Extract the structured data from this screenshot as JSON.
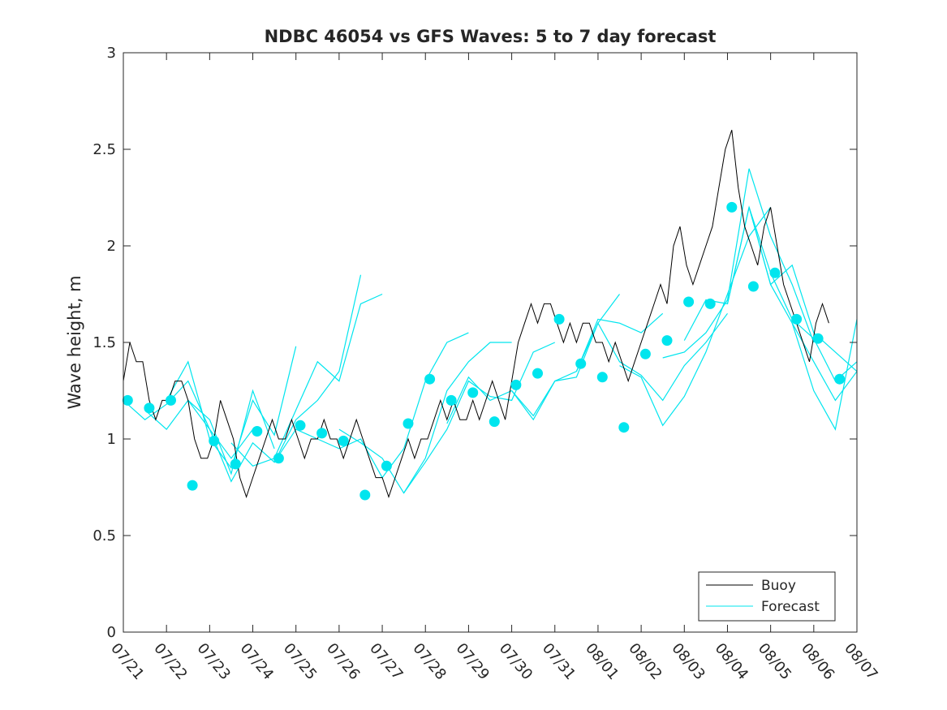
{
  "chart_data": {
    "type": "line",
    "title": "NDBC 46054 vs GFS Waves: 5 to 7 day forecast",
    "xlabel": "",
    "ylabel": "Wave height, m",
    "x_ticks": [
      "07/21",
      "07/22",
      "07/23",
      "07/24",
      "07/25",
      "07/26",
      "07/27",
      "07/28",
      "07/29",
      "07/30",
      "07/31",
      "08/01",
      "08/02",
      "08/03",
      "08/04",
      "08/05",
      "08/06",
      "08/07"
    ],
    "xlim": [
      0,
      17
    ],
    "x_unit": "days since 07/21",
    "ylim": [
      0,
      3
    ],
    "y_ticks": [
      "0",
      "0.5",
      "1",
      "1.5",
      "2",
      "2.5",
      "3"
    ],
    "grid": false,
    "legend_position": "bottom-right",
    "colors": {
      "buoy": "#000000",
      "forecast": "#00e5ee",
      "axis": "#262626"
    },
    "series": [
      {
        "name": "Buoy",
        "style": "line",
        "x": [
          0.0,
          0.15,
          0.3,
          0.45,
          0.6,
          0.75,
          0.9,
          1.05,
          1.2,
          1.35,
          1.5,
          1.65,
          1.8,
          1.95,
          2.1,
          2.25,
          2.4,
          2.55,
          2.7,
          2.85,
          3.0,
          3.15,
          3.3,
          3.45,
          3.6,
          3.75,
          3.9,
          4.05,
          4.2,
          4.35,
          4.5,
          4.65,
          4.8,
          4.95,
          5.1,
          5.25,
          5.4,
          5.55,
          5.7,
          5.85,
          6.0,
          6.15,
          6.3,
          6.45,
          6.6,
          6.75,
          6.9,
          7.05,
          7.2,
          7.35,
          7.5,
          7.65,
          7.8,
          7.95,
          8.1,
          8.25,
          8.4,
          8.55,
          8.7,
          8.85,
          9.0,
          9.15,
          9.3,
          9.45,
          9.6,
          9.75,
          9.9,
          10.05,
          10.2,
          10.35,
          10.5,
          10.65,
          10.8,
          10.95,
          11.1,
          11.25,
          11.4,
          11.55,
          11.7,
          11.85,
          12.0,
          12.15,
          12.3,
          12.45,
          12.6,
          12.75,
          12.9,
          13.05,
          13.2,
          13.35,
          13.5,
          13.65,
          13.8,
          13.95,
          14.1,
          14.25,
          14.4,
          14.55,
          14.7,
          14.85,
          15.0,
          15.15,
          15.3,
          15.45,
          15.6,
          15.75,
          15.9,
          16.05,
          16.2,
          16.35
        ],
        "y": [
          1.3,
          1.5,
          1.4,
          1.4,
          1.2,
          1.1,
          1.2,
          1.2,
          1.3,
          1.3,
          1.2,
          1.0,
          0.9,
          0.9,
          1.0,
          1.2,
          1.1,
          1.0,
          0.8,
          0.7,
          0.8,
          0.9,
          1.0,
          1.1,
          1.0,
          1.0,
          1.1,
          1.0,
          0.9,
          1.0,
          1.0,
          1.1,
          1.0,
          1.0,
          0.9,
          1.0,
          1.1,
          1.0,
          0.9,
          0.8,
          0.8,
          0.7,
          0.8,
          0.9,
          1.0,
          0.9,
          1.0,
          1.0,
          1.1,
          1.2,
          1.1,
          1.2,
          1.1,
          1.1,
          1.2,
          1.1,
          1.2,
          1.3,
          1.2,
          1.1,
          1.3,
          1.5,
          1.6,
          1.7,
          1.6,
          1.7,
          1.7,
          1.6,
          1.5,
          1.6,
          1.5,
          1.6,
          1.6,
          1.5,
          1.5,
          1.4,
          1.5,
          1.4,
          1.3,
          1.4,
          1.5,
          1.6,
          1.7,
          1.8,
          1.7,
          2.0,
          2.1,
          1.9,
          1.8,
          1.9,
          2.0,
          2.1,
          2.3,
          2.5,
          2.6,
          2.3,
          2.1,
          2.0,
          1.9,
          2.1,
          2.2,
          2.0,
          1.8,
          1.7,
          1.6,
          1.5,
          1.4,
          1.6,
          1.7,
          1.6
        ]
      },
      {
        "name": "Forecast",
        "style": "line",
        "runs": [
          {
            "x": [
              0.0,
              0.5,
              1.0,
              1.5,
              2.0,
              2.5,
              3.0
            ],
            "y": [
              1.2,
              1.1,
              1.18,
              1.3,
              1.05,
              0.9,
              1.05
            ]
          },
          {
            "x": [
              0.5,
              1.0,
              1.5,
              2.0,
              2.5,
              3.0,
              3.5
            ],
            "y": [
              1.15,
              1.05,
              1.2,
              1.1,
              0.82,
              1.25,
              0.95
            ]
          },
          {
            "x": [
              1.0,
              1.5,
              2.0,
              2.5,
              3.0,
              3.5,
              4.0
            ],
            "y": [
              1.2,
              1.4,
              1.0,
              0.85,
              1.2,
              1.02,
              1.48
            ]
          },
          {
            "x": [
              1.5,
              2.0,
              2.5,
              3.0,
              3.5,
              4.0,
              4.5,
              5.0,
              5.5
            ],
            "y": [
              1.2,
              1.05,
              0.78,
              0.98,
              0.88,
              1.1,
              1.2,
              1.35,
              1.85
            ]
          },
          {
            "x": [
              2.5,
              3.0,
              3.5,
              4.0,
              4.5,
              5.0,
              5.5,
              6.0
            ],
            "y": [
              0.98,
              0.86,
              0.9,
              1.15,
              1.4,
              1.3,
              1.7,
              1.75
            ]
          },
          {
            "x": [
              3.5,
              4.0,
              4.5,
              5.0,
              5.5,
              6.0,
              6.5,
              7.0,
              7.5,
              8.0
            ],
            "y": [
              0.88,
              1.05,
              1.0,
              0.95,
              1.0,
              0.8,
              0.95,
              1.3,
              1.5,
              1.55
            ]
          },
          {
            "x": [
              5.0,
              5.5,
              6.0,
              6.5,
              7.0,
              7.5,
              8.0,
              8.5,
              9.0
            ],
            "y": [
              1.05,
              0.98,
              0.9,
              0.72,
              0.9,
              1.25,
              1.4,
              1.5,
              1.5
            ]
          },
          {
            "x": [
              6.5,
              7.0,
              7.5,
              8.0,
              8.5,
              9.0,
              9.5,
              10.0
            ],
            "y": [
              0.72,
              0.88,
              1.05,
              1.3,
              1.22,
              1.2,
              1.45,
              1.5
            ]
          },
          {
            "x": [
              7.5,
              8.0,
              8.5,
              9.0,
              9.5,
              10.0,
              10.5,
              11.0,
              11.5
            ],
            "y": [
              1.08,
              1.32,
              1.2,
              1.25,
              1.12,
              1.3,
              1.32,
              1.6,
              1.75
            ]
          },
          {
            "x": [
              9.0,
              9.5,
              10.0,
              10.5,
              11.0,
              11.5,
              12.0,
              12.5
            ],
            "y": [
              1.25,
              1.1,
              1.3,
              1.35,
              1.62,
              1.6,
              1.55,
              1.65
            ]
          },
          {
            "x": [
              10.5,
              11.0,
              11.5,
              12.0,
              12.5,
              13.0,
              13.5,
              14.0
            ],
            "y": [
              1.35,
              1.6,
              1.4,
              1.33,
              1.2,
              1.38,
              1.5,
              1.65
            ]
          },
          {
            "x": [
              11.5,
              12.0,
              12.5,
              13.0,
              13.5,
              14.0,
              14.5,
              15.0
            ],
            "y": [
              1.38,
              1.32,
              1.07,
              1.22,
              1.45,
              1.75,
              2.05,
              2.2
            ]
          },
          {
            "x": [
              12.5,
              13.0,
              13.5,
              14.0,
              14.5,
              15.0,
              15.5,
              16.0
            ],
            "y": [
              1.42,
              1.45,
              1.55,
              1.72,
              2.4,
              2.05,
              1.8,
              1.5
            ]
          },
          {
            "x": [
              13.0,
              13.5,
              14.0,
              14.5,
              15.0,
              15.5,
              16.0,
              16.5,
              17.0
            ],
            "y": [
              1.51,
              1.72,
              1.7,
              2.2,
              1.8,
              1.9,
              1.55,
              1.45,
              1.35
            ]
          },
          {
            "x": [
              14.0,
              14.5,
              15.0,
              15.5,
              16.0,
              16.5,
              17.0
            ],
            "y": [
              1.7,
              2.2,
              1.86,
              1.62,
              1.52,
              1.3,
              1.4
            ]
          },
          {
            "x": [
              14.5,
              15.0,
              15.5,
              16.0,
              16.5,
              17.0
            ],
            "y": [
              2.2,
              1.8,
              1.6,
              1.4,
              1.2,
              1.35
            ]
          },
          {
            "x": [
              15.5,
              16.0,
              16.5,
              17.0
            ],
            "y": [
              1.6,
              1.25,
              1.05,
              1.62
            ]
          }
        ]
      },
      {
        "name": "Forecast analysis points",
        "style": "markers",
        "x": [
          0.1,
          0.6,
          1.1,
          1.6,
          2.1,
          2.6,
          3.1,
          3.6,
          4.1,
          4.6,
          5.1,
          5.6,
          6.1,
          6.6,
          7.1,
          7.6,
          8.1,
          8.6,
          9.1,
          9.6,
          10.1,
          10.6,
          11.1,
          11.6,
          12.1,
          12.6,
          13.1,
          13.6,
          14.1,
          14.6,
          15.1,
          15.6,
          16.1,
          16.6
        ],
        "y": [
          1.2,
          1.16,
          1.2,
          0.76,
          0.99,
          0.87,
          1.04,
          0.9,
          1.07,
          1.03,
          0.99,
          0.71,
          0.86,
          1.08,
          1.31,
          1.2,
          1.24,
          1.09,
          1.28,
          1.34,
          1.62,
          1.39,
          1.32,
          1.06,
          1.44,
          1.51,
          1.71,
          1.7,
          2.2,
          1.79,
          1.86,
          1.62,
          1.52,
          1.31
        ]
      }
    ],
    "legend": [
      "Buoy",
      "Forecast"
    ]
  }
}
